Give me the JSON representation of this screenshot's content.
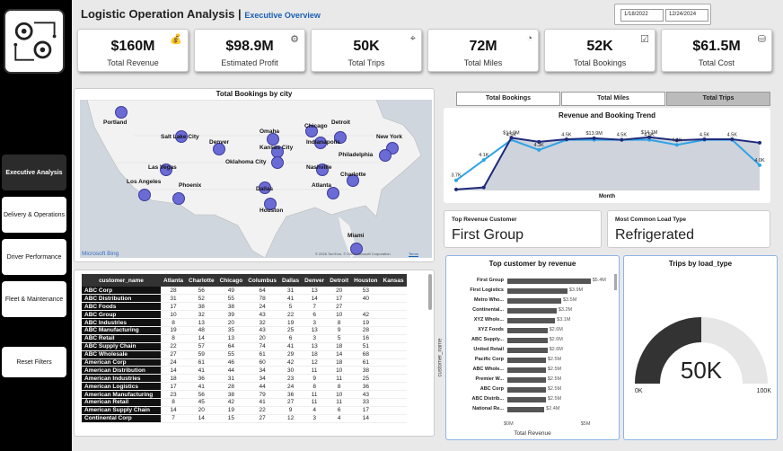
{
  "header": {
    "title": "Logistic Operation Analysis |",
    "subtitle": "Executive Overview",
    "start_date": "1/18/2022",
    "end_date": "12/24/2024"
  },
  "nav": [
    {
      "label": "Executive Analysis",
      "active": true
    },
    {
      "label": "Delivery & Operations"
    },
    {
      "label": "Driver Performance"
    },
    {
      "label": "Fleet & Maintenance"
    },
    {
      "label": "Reset Filters"
    }
  ],
  "kpis": [
    {
      "value": "$160M",
      "label": "Total Revenue",
      "icon": "money-bag-icon"
    },
    {
      "value": "$98.9M",
      "label": "Estimated Profit",
      "icon": "profit-icon"
    },
    {
      "value": "50K",
      "label": "Total Trips",
      "icon": "route-icon"
    },
    {
      "value": "72M",
      "label": "Total Miles",
      "icon": "speedometer-icon"
    },
    {
      "value": "52K",
      "label": "Total Bookings",
      "icon": "calendar-check-icon"
    },
    {
      "value": "$61.5M",
      "label": "Total Cost",
      "icon": "coins-icon"
    }
  ],
  "map": {
    "title": "Total Bookings by city",
    "cities": [
      "Portland",
      "Salt Lake City",
      "Denver",
      "Omaha",
      "Chicago",
      "Detroit",
      "New York",
      "Kansas City",
      "Indianapolis",
      "Philadelphia",
      "Las Vegas",
      "Oklahoma City",
      "Nashville",
      "Charlotte",
      "Los Angeles",
      "Phoenix",
      "Dallas",
      "Atlanta",
      "Houston",
      "Miami"
    ],
    "credit": "© 2026 TomTom, © 2026 Microsoft Corporation",
    "terms": "Terms",
    "brand": "Microsoft Bing"
  },
  "toggle": {
    "bookings": "Total Bookings",
    "miles": "Total Miles",
    "trips": "Total Trips"
  },
  "trend": {
    "title": "Revenue and Booking Trend",
    "xlabel": "Month"
  },
  "chart_data": [
    {
      "type": "line",
      "title": "Revenue and Booking Trend",
      "xlabel": "Month",
      "series": [
        {
          "values": [
            3.7,
            4.1,
            4.5,
            4.3,
            4.5,
            4.5,
            4.5,
            4.5,
            4.4,
            4.5,
            4.5,
            4.0
          ],
          "labels": [
            "3.7K",
            "4.1K",
            "4.5K",
            "4.3K",
            "4.5K",
            "",
            "4.5K",
            "4.5K",
            "4.4K",
            "4.5K",
            "4.5K",
            "4.0K"
          ]
        },
        {
          "values": [
            3.7,
            4.1,
            14.0,
            13.2,
            13.7,
            13.9,
            13.6,
            14.1,
            13.5,
            13.7,
            13.7,
            13.0
          ],
          "labels": [
            "",
            "",
            "$14.0M",
            "",
            "",
            "$13.9M",
            "",
            "$14.1M",
            "",
            "",
            "",
            ""
          ]
        }
      ]
    },
    {
      "type": "bar",
      "title": "Top customer by revenue",
      "xlabel": "Total Revenue",
      "ylabel": "customer_name",
      "categories": [
        "First Group",
        "First Logistics",
        "Metro Who...",
        "Continental...",
        "XYZ Whole...",
        "XYZ Foods",
        "ABC Supply...",
        "United Retail",
        "Pacific Corp",
        "ABC Whole...",
        "Premier W...",
        "ABC Corp",
        "ABC Distrib...",
        "National Re..."
      ],
      "values": [
        5.4,
        3.9,
        3.5,
        3.2,
        3.1,
        2.6,
        2.6,
        2.6,
        2.5,
        2.5,
        2.5,
        2.5,
        2.5,
        2.4
      ],
      "labels": [
        "$5.4M",
        "$3.9M",
        "$3.5M",
        "$3.2M",
        "$3.1M",
        "$2.6M",
        "$2.6M",
        "$2.6M",
        "$2.5M",
        "$2.5M",
        "$2.5M",
        "$2.5M",
        "$2.5M",
        "$2.4M"
      ],
      "xticks": [
        "$0M",
        "$5M"
      ],
      "xlim": [
        0,
        5.6
      ]
    },
    {
      "type": "gauge",
      "title": "Trips by load_type",
      "value": 50,
      "min": 0,
      "max": 100,
      "label": "50K",
      "min_label": "0K",
      "max_label": "100K"
    }
  ],
  "cards": {
    "top_customer_label": "Top Revenue Customer",
    "top_customer": "First Group",
    "load_type_label": "Most Common Load Type",
    "load_type": "Refrigerated"
  },
  "table": {
    "headers": [
      "customer_name",
      "Atlanta",
      "Charlotte",
      "Chicago",
      "Columbus",
      "Dallas",
      "Denver",
      "Detroit",
      "Houston",
      "Kansas"
    ],
    "rows": [
      [
        "ABC Corp",
        "28",
        "56",
        "49",
        "64",
        "31",
        "13",
        "20",
        "53",
        ""
      ],
      [
        "ABC Distribution",
        "31",
        "52",
        "55",
        "78",
        "41",
        "14",
        "17",
        "40",
        ""
      ],
      [
        "ABC Foods",
        "17",
        "38",
        "38",
        "24",
        "5",
        "7",
        "27",
        "",
        ""
      ],
      [
        "ABC Group",
        "10",
        "32",
        "39",
        "43",
        "22",
        "6",
        "10",
        "42",
        ""
      ],
      [
        "ABC Industries",
        "8",
        "13",
        "20",
        "32",
        "19",
        "3",
        "8",
        "19",
        ""
      ],
      [
        "ABC Manufacturing",
        "19",
        "48",
        "35",
        "43",
        "25",
        "13",
        "9",
        "28",
        ""
      ],
      [
        "ABC Retail",
        "8",
        "14",
        "13",
        "20",
        "6",
        "3",
        "5",
        "16",
        ""
      ],
      [
        "ABC Supply Chain",
        "22",
        "57",
        "64",
        "74",
        "41",
        "13",
        "18",
        "51",
        ""
      ],
      [
        "ABC Wholesale",
        "27",
        "59",
        "55",
        "61",
        "29",
        "18",
        "14",
        "68",
        ""
      ],
      [
        "American Corp",
        "24",
        "61",
        "46",
        "60",
        "42",
        "12",
        "18",
        "61",
        ""
      ],
      [
        "American Distribution",
        "14",
        "41",
        "44",
        "34",
        "30",
        "11",
        "10",
        "38",
        ""
      ],
      [
        "American Industries",
        "18",
        "36",
        "31",
        "34",
        "23",
        "9",
        "11",
        "25",
        ""
      ],
      [
        "American Logistics",
        "17",
        "41",
        "28",
        "44",
        "24",
        "8",
        "8",
        "36",
        ""
      ],
      [
        "American Manufacturing",
        "23",
        "56",
        "38",
        "79",
        "36",
        "11",
        "10",
        "43",
        ""
      ],
      [
        "American Retail",
        "8",
        "45",
        "42",
        "41",
        "27",
        "11",
        "11",
        "33",
        ""
      ],
      [
        "American Supply Chain",
        "14",
        "20",
        "19",
        "22",
        "9",
        "4",
        "6",
        "17",
        ""
      ],
      [
        "Continental Corp",
        "7",
        "14",
        "15",
        "27",
        "12",
        "3",
        "4",
        "14",
        ""
      ]
    ]
  },
  "colors": {
    "dark_line": "#1f2a7a",
    "light_line": "#2ea3e6",
    "area": "#cfd3dc",
    "gauge_fill": "#333333",
    "gauge_track": "#e6e6e6"
  }
}
